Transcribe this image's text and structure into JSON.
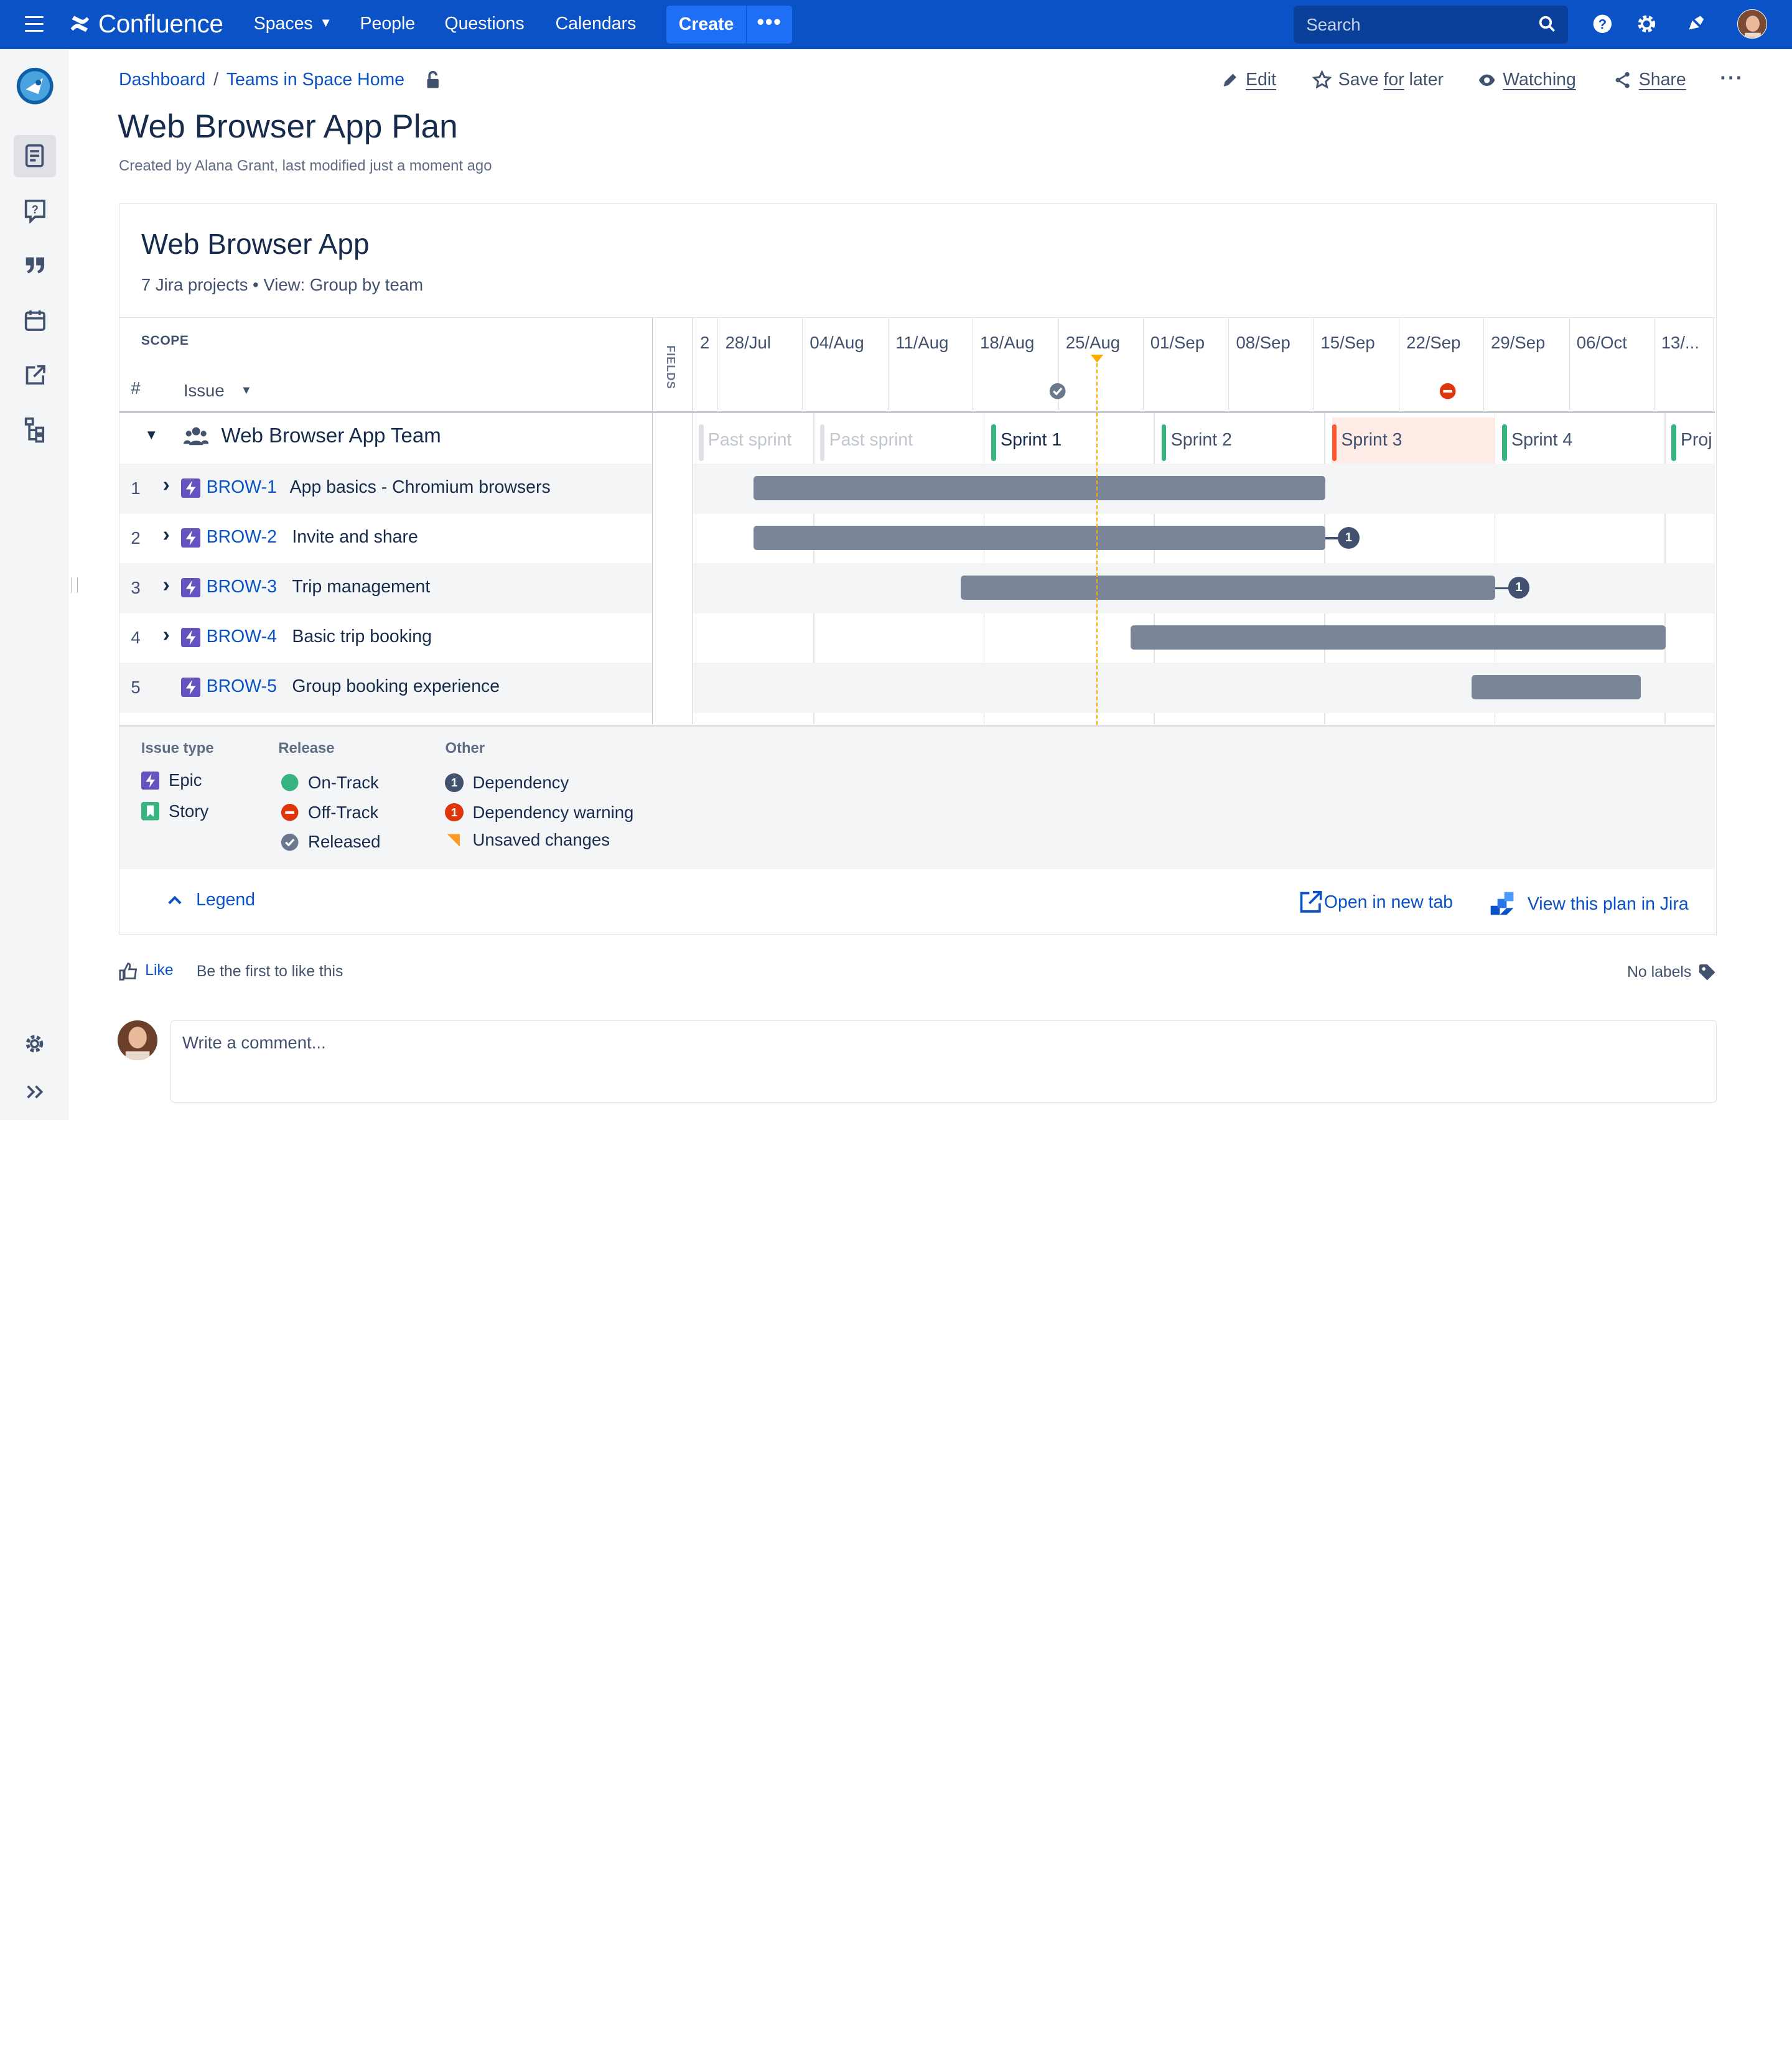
{
  "topnav": {
    "product": "Confluence",
    "items": [
      "Spaces",
      "People",
      "Questions",
      "Calendars"
    ],
    "create_label": "Create",
    "more_label": "•••",
    "search_placeholder": "Search"
  },
  "rail": {
    "items": [
      "pages-icon",
      "questions-icon",
      "quotes-icon",
      "calendar-icon",
      "share-out-icon",
      "tree-icon"
    ],
    "bottom": [
      "settings-icon",
      "expand-icon"
    ]
  },
  "breadcrumb": {
    "root": "Dashboard",
    "sep": "/",
    "space": "Teams in Space Home"
  },
  "actions": {
    "edit": "Edit",
    "save_a": "Save ",
    "save_b": "for",
    "save_c": " later",
    "watching": "Watching",
    "share": "Share"
  },
  "page": {
    "title": "Web Browser App Plan",
    "meta": "Created by Alana Grant, last modified just a moment ago"
  },
  "plan": {
    "title": "Web Browser App",
    "subtitle": "7 Jira projects • View: Group by team",
    "scope": "SCOPE",
    "hash": "#",
    "issue": "Issue",
    "fields": "FIELDS",
    "dates": [
      "2",
      "28/Jul",
      "04/Aug",
      "11/Aug",
      "18/Aug",
      "25/Aug",
      "01/Sep",
      "08/Sep",
      "15/Sep",
      "22/Sep",
      "29/Sep",
      "06/Oct",
      "13/..."
    ],
    "team": "Web Browser App Team",
    "sprints": [
      {
        "label": "Past sprint",
        "state": "past"
      },
      {
        "label": "Past sprint",
        "state": "past"
      },
      {
        "label": "Sprint 1",
        "state": "active"
      },
      {
        "label": "Sprint 2",
        "state": "future"
      },
      {
        "label": "Sprint 3",
        "state": "overbooked"
      },
      {
        "label": "Sprint 4",
        "state": "future"
      },
      {
        "label": "Proj",
        "state": "future"
      }
    ],
    "issues": [
      {
        "num": "1",
        "key": "BROW-1",
        "summary": "App basics - Chromium browsers",
        "dep": ""
      },
      {
        "num": "2",
        "key": "BROW-2",
        "summary": "Invite and share",
        "dep": "1"
      },
      {
        "num": "3",
        "key": "BROW-3",
        "summary": "Trip management",
        "dep": "1"
      },
      {
        "num": "4",
        "key": "BROW-4",
        "summary": "Basic trip booking",
        "dep": ""
      },
      {
        "num": "5",
        "key": "BROW-5",
        "summary": "Group booking experience",
        "dep": ""
      }
    ]
  },
  "legend": {
    "issue_type": "Issue type",
    "epic": "Epic",
    "story": "Story",
    "release": "Release",
    "on_track": "On-Track",
    "off_track": "Off-Track",
    "released": "Released",
    "other": "Other",
    "dependency": "Dependency",
    "dependency_warning": "Dependency warning",
    "unsaved": "Unsaved changes",
    "dep_num": "1",
    "toggle": "Legend",
    "open_new_tab": "Open in new tab",
    "view_in_jira": "View this plan in Jira"
  },
  "footer": {
    "like": "Like",
    "like_text": "Be the first to like this",
    "labels": "No labels",
    "comment_placeholder": "Write a comment..."
  },
  "colors": {
    "brand": "#0b52c7",
    "epic": "#6554c0",
    "story": "#36b37e",
    "bar": "#7a8599",
    "off_track": "#de350b",
    "today": "#ffab00"
  }
}
